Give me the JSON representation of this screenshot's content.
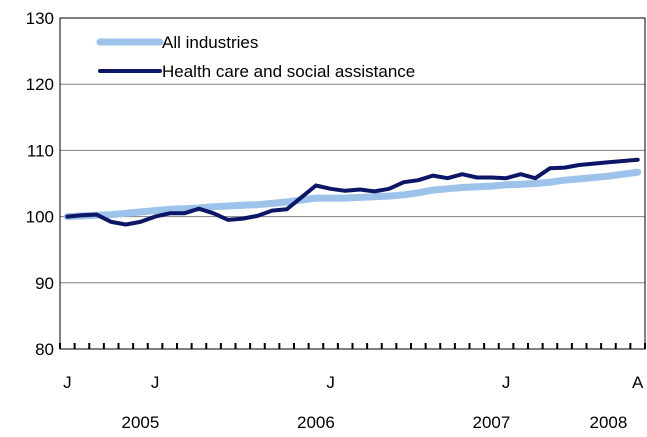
{
  "chart_data": {
    "type": "line",
    "title": "",
    "xlabel": "",
    "ylabel": "",
    "ylim": [
      80,
      130
    ],
    "yticks": [
      80,
      90,
      100,
      110,
      120,
      130
    ],
    "grid": "horizontal",
    "legend_position": "top-left",
    "x_range": [
      "2005-01",
      "2008-04"
    ],
    "month_tick_labels": [
      {
        "month": "2005-01",
        "label": "J"
      },
      {
        "month": "2005-07",
        "label": "J"
      },
      {
        "month": "2006-07",
        "label": "J"
      },
      {
        "month": "2007-07",
        "label": "J"
      },
      {
        "month": "2008-04",
        "label": "A"
      }
    ],
    "year_labels": [
      {
        "center_month": "2005-06",
        "label": "2005"
      },
      {
        "center_month": "2006-06",
        "label": "2006"
      },
      {
        "center_month": "2007-06",
        "label": "2007"
      },
      {
        "center_month": "2008-02",
        "label": "2008"
      }
    ],
    "months": [
      "2005-01",
      "2005-02",
      "2005-03",
      "2005-04",
      "2005-05",
      "2005-06",
      "2005-07",
      "2005-08",
      "2005-09",
      "2005-10",
      "2005-11",
      "2005-12",
      "2006-01",
      "2006-02",
      "2006-03",
      "2006-04",
      "2006-05",
      "2006-06",
      "2006-07",
      "2006-08",
      "2006-09",
      "2006-10",
      "2006-11",
      "2006-12",
      "2007-01",
      "2007-02",
      "2007-03",
      "2007-04",
      "2007-05",
      "2007-06",
      "2007-07",
      "2007-08",
      "2007-09",
      "2007-10",
      "2007-11",
      "2007-12",
      "2008-01",
      "2008-02",
      "2008-03",
      "2008-04"
    ],
    "series": [
      {
        "name": "All industries",
        "color": "#9ec3ea",
        "values": [
          100.0,
          100.1,
          100.2,
          100.3,
          100.5,
          100.7,
          100.9,
          101.1,
          101.2,
          101.3,
          101.5,
          101.6,
          101.7,
          101.8,
          102.0,
          102.2,
          102.5,
          102.8,
          102.8,
          102.8,
          102.9,
          103.0,
          103.1,
          103.3,
          103.6,
          104.0,
          104.2,
          104.4,
          104.5,
          104.6,
          104.8,
          104.9,
          105.0,
          105.2,
          105.5,
          105.7,
          105.9,
          106.1,
          106.4,
          106.7
        ]
      },
      {
        "name": "Health care and social assistance",
        "color": "#0b1766",
        "values": [
          100.0,
          100.2,
          100.3,
          99.2,
          98.8,
          99.2,
          100.0,
          100.5,
          100.5,
          101.2,
          100.5,
          99.5,
          99.7,
          100.1,
          100.9,
          101.1,
          102.9,
          104.7,
          104.2,
          103.9,
          104.1,
          103.8,
          104.2,
          105.2,
          105.5,
          106.2,
          105.8,
          106.4,
          105.9,
          105.9,
          105.8,
          106.4,
          105.8,
          107.3,
          107.4,
          107.8,
          108.0,
          108.2,
          108.4,
          108.6
        ]
      }
    ]
  }
}
